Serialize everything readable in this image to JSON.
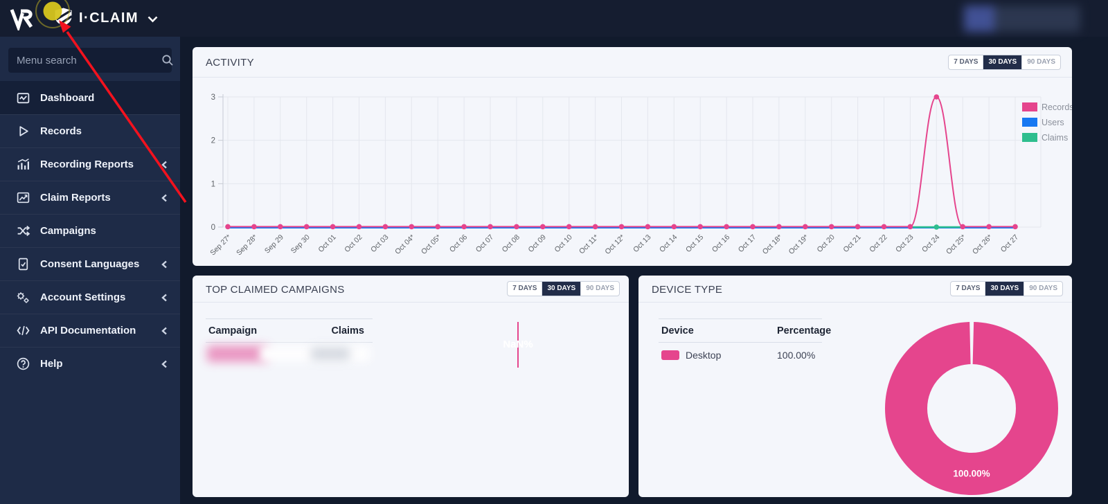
{
  "topbar": {
    "brand": "I·CLAIM"
  },
  "sidebar": {
    "search_placeholder": "Menu search",
    "items": [
      {
        "label": "Dashboard",
        "icon": "dashboard-icon",
        "active": true,
        "expandable": false
      },
      {
        "label": "Records",
        "icon": "records-icon",
        "active": false,
        "expandable": false
      },
      {
        "label": "Recording Reports",
        "icon": "recording-reports-icon",
        "active": false,
        "expandable": true
      },
      {
        "label": "Claim Reports",
        "icon": "claim-reports-icon",
        "active": false,
        "expandable": true
      },
      {
        "label": "Campaigns",
        "icon": "campaigns-icon",
        "active": false,
        "expandable": false
      },
      {
        "label": "Consent Languages",
        "icon": "consent-languages-icon",
        "active": false,
        "expandable": true
      },
      {
        "label": "Account Settings",
        "icon": "account-settings-icon",
        "active": false,
        "expandable": true
      },
      {
        "label": "API Documentation",
        "icon": "api-documentation-icon",
        "active": false,
        "expandable": true
      },
      {
        "label": "Help",
        "icon": "help-icon",
        "active": false,
        "expandable": true
      }
    ]
  },
  "range_buttons": {
    "labels": [
      "7 DAYS",
      "30 DAYS",
      "90 DAYS"
    ],
    "active": "30 DAYS"
  },
  "activity": {
    "title": "ACTIVITY"
  },
  "campaigns": {
    "title": "TOP CLAIMED CAMPAIGNS",
    "columns": [
      "Campaign",
      "Claims"
    ],
    "pie_label": "NaN%"
  },
  "device": {
    "title": "DEVICE TYPE",
    "columns": [
      "Device",
      "Percentage"
    ],
    "rows": [
      {
        "name": "Desktop",
        "percentage": "100.00%",
        "color": "#E5458D"
      }
    ],
    "donut_label": "100.00%"
  },
  "colors": {
    "records_pink": "#E5458D",
    "users_blue": "#1778F2",
    "claims_green": "#2EBE8E",
    "baseline_purple": "#7B5FAE",
    "active_button_bg": "#222D49",
    "annotation_red": "#F2121E",
    "highlight_yellow": "#D6C51E"
  },
  "chart_data": [
    {
      "type": "line",
      "title": "ACTIVITY",
      "categories": [
        "Sep 27*",
        "Sep 28*",
        "Sep 29",
        "Sep 30",
        "Oct 01",
        "Oct 02",
        "Oct 03",
        "Oct 04*",
        "Oct 05*",
        "Oct 06",
        "Oct 07",
        "Oct 08",
        "Oct 09",
        "Oct 10",
        "Oct 11*",
        "Oct 12*",
        "Oct 13",
        "Oct 14",
        "Oct 15",
        "Oct 16",
        "Oct 17",
        "Oct 18*",
        "Oct 19*",
        "Oct 20",
        "Oct 21",
        "Oct 22",
        "Oct 23",
        "Oct 24",
        "Oct 25*",
        "Oct 26*",
        "Oct 27"
      ],
      "series": [
        {
          "name": "Records",
          "color": "#E5458D",
          "values": [
            0,
            0,
            0,
            0,
            0,
            0,
            0,
            0,
            0,
            0,
            0,
            0,
            0,
            0,
            0,
            0,
            0,
            0,
            0,
            0,
            0,
            0,
            0,
            0,
            0,
            0,
            0,
            3,
            0,
            0,
            0
          ]
        },
        {
          "name": "Users",
          "color": "#1778F2",
          "values": [
            0,
            0,
            0,
            0,
            0,
            0,
            0,
            0,
            0,
            0,
            0,
            0,
            0,
            0,
            0,
            0,
            0,
            0,
            0,
            0,
            0,
            0,
            0,
            0,
            0,
            0,
            0,
            0,
            0,
            0,
            0
          ]
        },
        {
          "name": "Claims",
          "color": "#2EBE8E",
          "values": [
            0,
            0,
            0,
            0,
            0,
            0,
            0,
            0,
            0,
            0,
            0,
            0,
            0,
            0,
            0,
            0,
            0,
            0,
            0,
            0,
            0,
            0,
            0,
            0,
            0,
            0,
            0,
            0,
            0,
            0,
            0
          ]
        }
      ],
      "ylim": [
        0,
        3
      ],
      "yticks": [
        0,
        1,
        2,
        3
      ],
      "grid": true,
      "legend_position": "right"
    },
    {
      "type": "pie",
      "title": "TOP CLAIMED CAMPAIGNS",
      "categories": [],
      "values": [],
      "label": "NaN%"
    },
    {
      "type": "pie",
      "title": "DEVICE TYPE",
      "categories": [
        "Desktop"
      ],
      "values": [
        100
      ],
      "colors": [
        "#E5458D"
      ],
      "center_label": "100.00%",
      "donut": true
    }
  ]
}
